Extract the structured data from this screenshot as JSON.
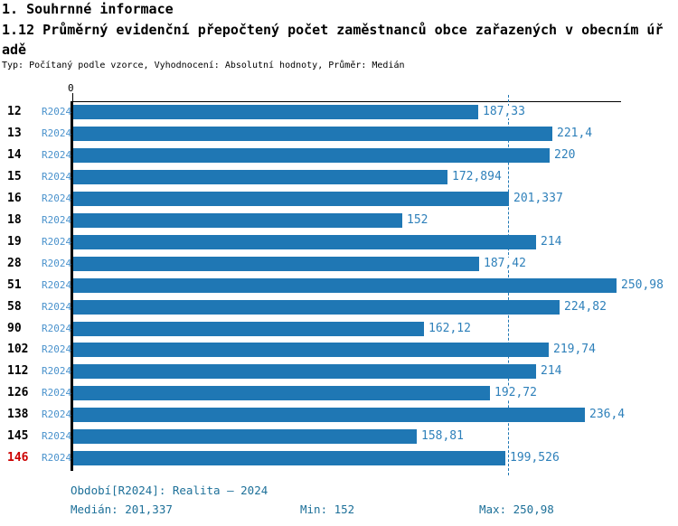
{
  "header": {
    "title1": "1. Souhrnné informace",
    "title2": "1.12 Průměrný evidenční přepočtený počet zaměstnanců obce zařazených v obecním úřadě",
    "subtitle": "Typ: Počítaný podle vzorce, Vyhodnocení: Absolutní hodnoty, Průměr: Medián"
  },
  "chart_data": {
    "type": "bar",
    "orientation": "horizontal",
    "title": "1.12 Průměrný evidenční přepočtený počet zaměstnanců obce zařazených v obecním úřadě",
    "axis_origin_label": "0",
    "xlim": [
      0,
      253
    ],
    "grid": false,
    "legend": false,
    "period_label": "R2024",
    "categories": [
      "12",
      "13",
      "14",
      "15",
      "16",
      "18",
      "19",
      "28",
      "51",
      "58",
      "90",
      "102",
      "112",
      "126",
      "138",
      "145",
      "146"
    ],
    "rows": [
      {
        "id": "12",
        "period": "R2024",
        "value": 187.33,
        "label": "187,33",
        "highlight": false
      },
      {
        "id": "13",
        "period": "R2024",
        "value": 221.4,
        "label": "221,4",
        "highlight": false
      },
      {
        "id": "14",
        "period": "R2024",
        "value": 220,
        "label": "220",
        "highlight": false
      },
      {
        "id": "15",
        "period": "R2024",
        "value": 172.894,
        "label": "172,894",
        "highlight": false
      },
      {
        "id": "16",
        "period": "R2024",
        "value": 201.337,
        "label": "201,337",
        "highlight": false
      },
      {
        "id": "18",
        "period": "R2024",
        "value": 152,
        "label": "152",
        "highlight": false
      },
      {
        "id": "19",
        "period": "R2024",
        "value": 214,
        "label": "214",
        "highlight": false
      },
      {
        "id": "28",
        "period": "R2024",
        "value": 187.42,
        "label": "187,42",
        "highlight": false
      },
      {
        "id": "51",
        "period": "R2024",
        "value": 250.98,
        "label": "250,98",
        "highlight": false
      },
      {
        "id": "58",
        "period": "R2024",
        "value": 224.82,
        "label": "224,82",
        "highlight": false
      },
      {
        "id": "90",
        "period": "R2024",
        "value": 162.12,
        "label": "162,12",
        "highlight": false
      },
      {
        "id": "102",
        "period": "R2024",
        "value": 219.74,
        "label": "219,74",
        "highlight": false
      },
      {
        "id": "112",
        "period": "R2024",
        "value": 214,
        "label": "214",
        "highlight": false
      },
      {
        "id": "126",
        "period": "R2024",
        "value": 192.72,
        "label": "192,72",
        "highlight": false
      },
      {
        "id": "138",
        "period": "R2024",
        "value": 236.4,
        "label": "236,4",
        "highlight": false
      },
      {
        "id": "145",
        "period": "R2024",
        "value": 158.81,
        "label": "158,81",
        "highlight": false
      },
      {
        "id": "146",
        "period": "R2024",
        "value": 199.526,
        "label": "199,526",
        "highlight": true
      }
    ],
    "median": 201.337,
    "min": 152,
    "max": 250.98
  },
  "footer": {
    "period_line": "Období[R2024]: Realita – 2024",
    "median_label": "Medián: 201,337",
    "min_label": "Min: 152",
    "max_label": "Max: 250,98"
  },
  "colors": {
    "bar": "#1f77b4",
    "value_label": "#2e80ba",
    "period_label": "#4a92cc",
    "median_line": "#1f77b4",
    "footer_text": "#1d7099",
    "highlight_row": "#cc0000",
    "axis": "#000000"
  }
}
